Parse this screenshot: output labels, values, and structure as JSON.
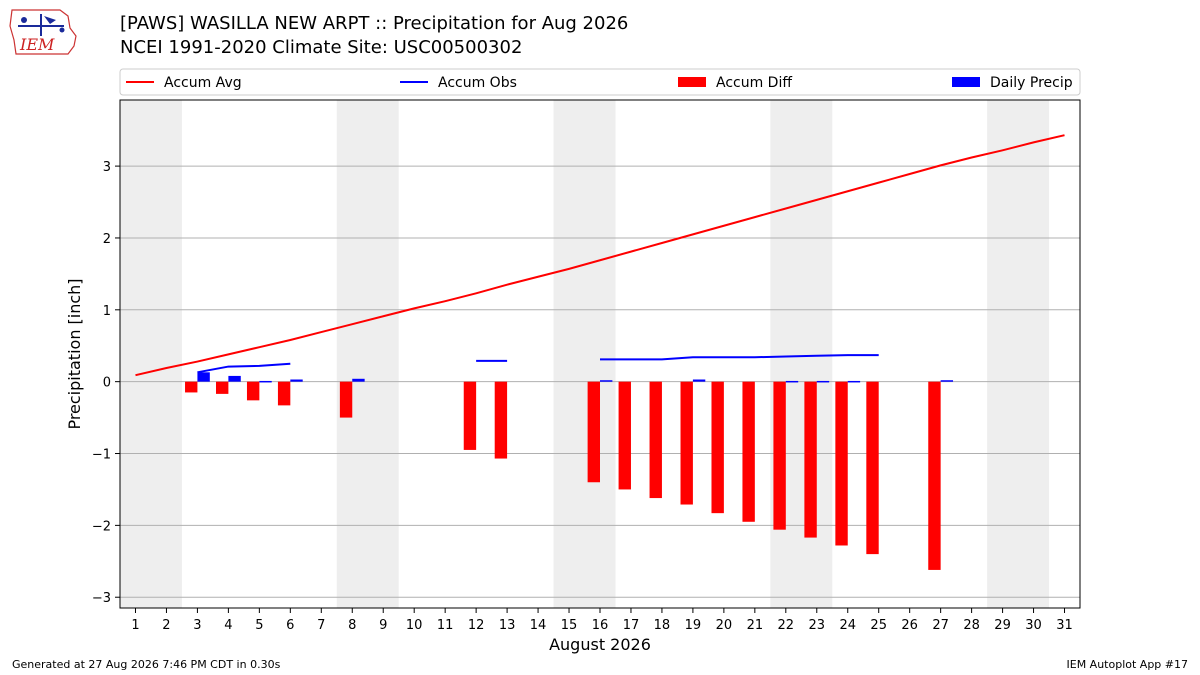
{
  "header": {
    "title": "[PAWS] WASILLA NEW ARPT :: Precipitation for Aug 2026",
    "subtitle": "NCEI 1991-2020 Climate Site: USC00500302",
    "logo_text": "IEM"
  },
  "footer": {
    "left": "Generated at 27 Aug 2026 7:46 PM CDT in 0.30s",
    "right": "IEM Autoplot App #17"
  },
  "colors": {
    "accum_avg": "#ff0000",
    "accum_obs": "#0000ff",
    "accum_diff": "#ff0000",
    "daily_precip": "#0000ff",
    "weekend_band": "#eeeeee",
    "grid": "#b0b0b0"
  },
  "chart_data": {
    "type": "bar",
    "xlabel": "August 2026",
    "ylabel": "Precipitation [inch]",
    "xlim": [
      0.5,
      31.5
    ],
    "ylim": [
      -3.15,
      3.92
    ],
    "x_ticks": [
      1,
      2,
      3,
      4,
      5,
      6,
      7,
      8,
      9,
      10,
      11,
      12,
      13,
      14,
      15,
      16,
      17,
      18,
      19,
      20,
      21,
      22,
      23,
      24,
      25,
      26,
      27,
      28,
      29,
      30,
      31
    ],
    "y_ticks": [
      -3,
      -2,
      -1,
      0,
      1,
      2,
      3
    ],
    "y_tick_labels": [
      "−3",
      "−2",
      "−1",
      "0",
      "1",
      "2",
      "3"
    ],
    "grid": "horizontal",
    "legend": {
      "placement": "top",
      "entries": [
        {
          "label": "Accum Avg",
          "kind": "line",
          "color": "#ff0000"
        },
        {
          "label": "Accum Obs",
          "kind": "line",
          "color": "#0000ff"
        },
        {
          "label": "Accum Diff",
          "kind": "bar",
          "color": "#ff0000"
        },
        {
          "label": "Daily Precip",
          "kind": "bar",
          "color": "#0000ff"
        }
      ]
    },
    "weekend_bands": [
      [
        0.5,
        2.5
      ],
      [
        7.5,
        9.5
      ],
      [
        14.5,
        16.5
      ],
      [
        21.5,
        23.5
      ],
      [
        28.5,
        30.5
      ]
    ],
    "accum_avg": {
      "x": [
        1,
        2,
        3,
        4,
        5,
        6,
        7,
        8,
        9,
        10,
        11,
        12,
        13,
        14,
        15,
        16,
        17,
        18,
        19,
        20,
        21,
        22,
        23,
        24,
        25,
        26,
        27,
        28,
        29,
        30,
        31
      ],
      "y": [
        0.09,
        0.19,
        0.28,
        0.38,
        0.48,
        0.58,
        0.69,
        0.8,
        0.91,
        1.02,
        1.12,
        1.23,
        1.35,
        1.46,
        1.57,
        1.69,
        1.81,
        1.93,
        2.05,
        2.17,
        2.29,
        2.41,
        2.53,
        2.65,
        2.77,
        2.89,
        3.01,
        3.12,
        3.22,
        3.33,
        3.43
      ]
    },
    "accum_obs": [
      {
        "x": [
          3,
          4,
          5,
          6
        ],
        "y": [
          0.13,
          0.21,
          0.22,
          0.25
        ]
      },
      {
        "x": [
          12,
          13
        ],
        "y": [
          0.29,
          0.29
        ]
      },
      {
        "x": [
          16,
          17,
          18,
          19,
          20,
          21,
          22,
          23,
          24,
          25
        ],
        "y": [
          0.31,
          0.31,
          0.31,
          0.34,
          0.34,
          0.34,
          0.35,
          0.36,
          0.37,
          0.37
        ]
      }
    ],
    "accum_diff": {
      "x": [
        3,
        4,
        5,
        6,
        8,
        12,
        13,
        16,
        17,
        18,
        19,
        20,
        21,
        22,
        23,
        24,
        25,
        27
      ],
      "values": [
        -0.15,
        -0.17,
        -0.26,
        -0.33,
        -0.5,
        -0.95,
        -1.07,
        -1.4,
        -1.5,
        -1.62,
        -1.71,
        -1.83,
        -1.95,
        -2.06,
        -2.17,
        -2.28,
        -2.4,
        -2.62
      ]
    },
    "daily_precip": {
      "x": [
        3,
        4,
        5,
        6,
        8,
        16,
        19,
        22,
        23,
        24,
        27
      ],
      "values": [
        0.13,
        0.08,
        0.01,
        0.03,
        0.04,
        0.02,
        0.03,
        0.01,
        0.01,
        0.01,
        0.02
      ]
    }
  }
}
